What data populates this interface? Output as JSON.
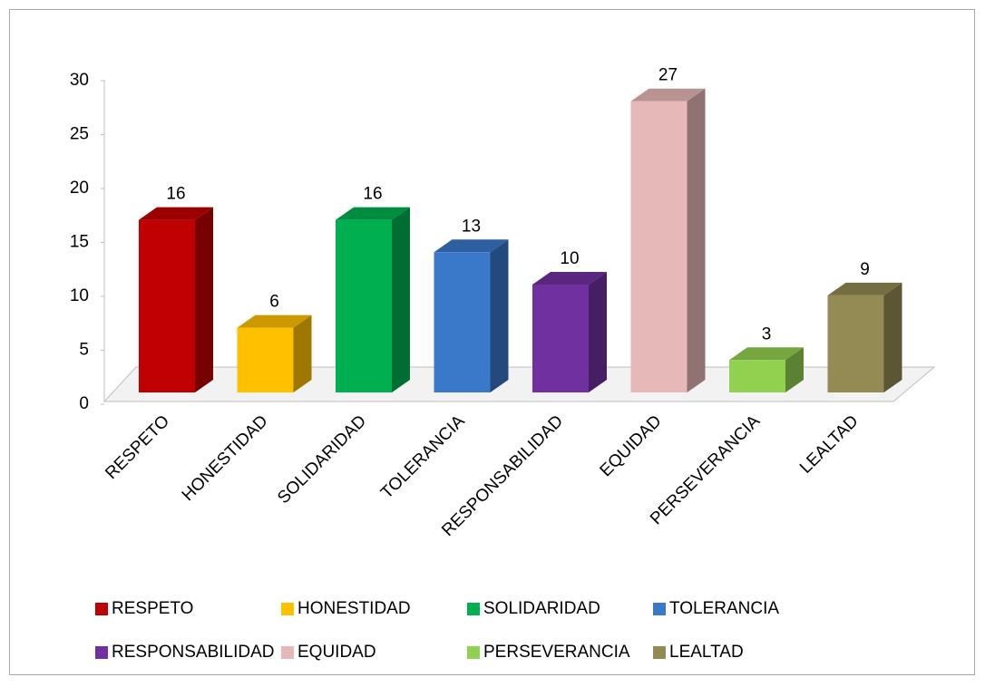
{
  "chart_data": {
    "type": "bar3d",
    "categories": [
      "RESPETO",
      "HONESTIDAD",
      "SOLIDARIDAD",
      "TOLERANCIA",
      "RESPONSABILIDAD",
      "EQUIDAD",
      "PERSEVERANCIA",
      "LEALTAD"
    ],
    "values": [
      16,
      6,
      16,
      13,
      10,
      27,
      3,
      9
    ],
    "colors": [
      "#c00000",
      "#ffc000",
      "#00b050",
      "#3a78c9",
      "#7030a0",
      "#e6b8b7",
      "#92d050",
      "#948a54"
    ],
    "ylim": [
      0,
      30
    ],
    "yticks": [
      0,
      5,
      10,
      15,
      20,
      25,
      30
    ],
    "legend": "bottom"
  }
}
